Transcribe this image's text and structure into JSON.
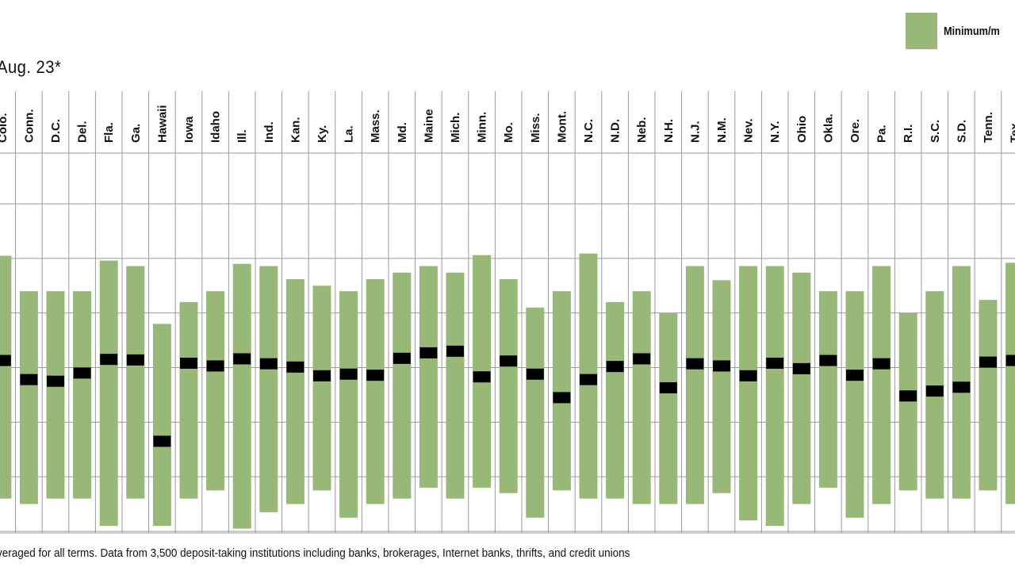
{
  "subtitle": "Aug. 23*",
  "legend": {
    "label": "Minimum/m"
  },
  "footnote": "veraged for all terms. Data from 3,500 deposit-taking institutions including banks, brokerages, Internet banks, thrifts, and credit unions",
  "colors": {
    "range": "#98b878",
    "average": "#000000",
    "grid": "#9a9a9a",
    "text": "#111111"
  },
  "chart_data": {
    "type": "bar",
    "categories": [
      "Colo.",
      "Conn.",
      "D.C.",
      "Del.",
      "Fla.",
      "Ga.",
      "Hawaii",
      "Iowa",
      "Idaho",
      "Ill.",
      "Ind.",
      "Kan.",
      "Ky.",
      "La.",
      "Mass.",
      "Md.",
      "Maine",
      "Mich.",
      "Minn.",
      "Mo.",
      "Miss.",
      "Mont.",
      "N.C.",
      "N.D.",
      "Neb.",
      "N.H.",
      "N.J.",
      "N.M.",
      "Nev.",
      "N.Y.",
      "Ohio",
      "Okla.",
      "Ore.",
      "Pa.",
      "R.I.",
      "S.C.",
      "S.D.",
      "Tenn.",
      "Tex."
    ],
    "series": [
      {
        "name": "Minimum/m",
        "kind": "range",
        "low": [
          0.6,
          0.5,
          0.6,
          0.6,
          0.1,
          0.6,
          0.1,
          0.6,
          0.75,
          0.05,
          0.35,
          0.5,
          0.75,
          0.25,
          0.5,
          0.6,
          0.8,
          0.6,
          0.8,
          0.7,
          0.25,
          0.75,
          0.6,
          0.6,
          0.5,
          0.5,
          0.5,
          0.7,
          0.2,
          0.1,
          0.5,
          0.8,
          0.25,
          0.5,
          0.75,
          0.6,
          0.6,
          0.75,
          0.5
        ],
        "high": [
          5.05,
          4.4,
          4.4,
          4.4,
          4.96,
          4.86,
          3.8,
          4.2,
          4.4,
          4.9,
          4.86,
          4.62,
          4.5,
          4.4,
          4.62,
          4.74,
          4.86,
          4.74,
          5.06,
          4.62,
          4.1,
          4.4,
          5.09,
          4.2,
          4.4,
          4.0,
          4.86,
          4.6,
          4.86,
          4.86,
          4.74,
          4.4,
          4.4,
          4.86,
          4.0,
          4.4,
          4.86,
          4.24,
          4.92
        ]
      },
      {
        "name": "Average",
        "kind": "marker",
        "values": [
          3.13,
          2.78,
          2.75,
          2.9,
          3.15,
          3.14,
          1.65,
          3.08,
          3.03,
          3.16,
          3.07,
          3.01,
          2.85,
          2.88,
          2.86,
          3.17,
          3.27,
          3.3,
          2.83,
          3.12,
          2.88,
          2.45,
          2.78,
          3.02,
          3.16,
          2.63,
          3.07,
          3.03,
          2.85,
          3.08,
          2.98,
          3.13,
          2.86,
          3.07,
          2.48,
          2.57,
          2.64,
          3.1,
          3.13
        ]
      }
    ],
    "ylim": [
      0,
      6
    ],
    "grid": true,
    "legend_position": "top-right",
    "title": "",
    "xlabel": "",
    "ylabel": ""
  }
}
